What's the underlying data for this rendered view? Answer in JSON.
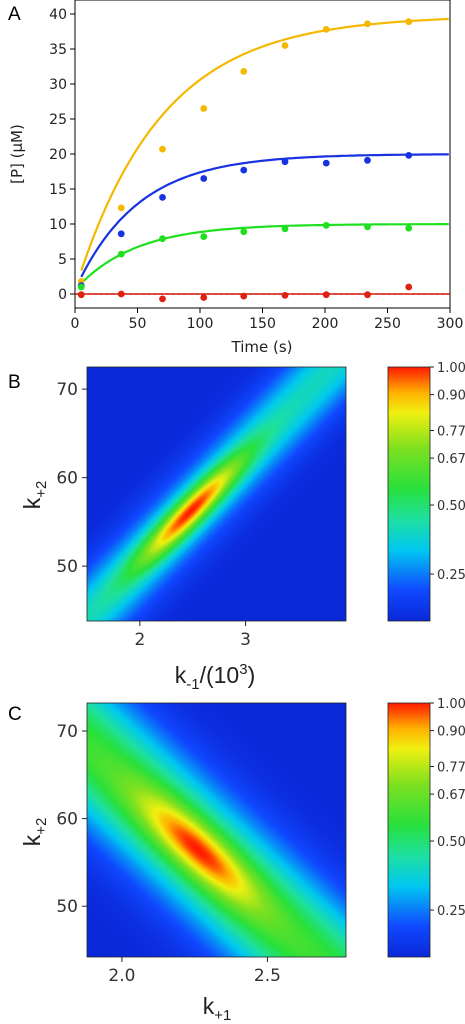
{
  "panel_labels": {
    "a": "A",
    "b": "B",
    "c": "C"
  },
  "colors": {
    "series_40": "#f5b800",
    "series_20": "#1732e0",
    "series_10": "#1fe01f",
    "series_0": "#e02010",
    "baseline": "#000000"
  },
  "colorbar_ticks": [
    "1.00",
    "0.90",
    "0.77",
    "0.67",
    "0.50",
    "0.25"
  ],
  "colorbar_values": [
    1.0,
    0.9,
    0.77,
    0.67,
    0.5,
    0.25
  ],
  "chart_data": [
    {
      "type": "scatter",
      "xlabel": "Time (s)",
      "ylabel": "[P] (μM)",
      "xlim": [
        0,
        300
      ],
      "ylim": [
        -2,
        42
      ],
      "xticks": [
        "0",
        "50",
        "100",
        "150",
        "200",
        "250",
        "300"
      ],
      "yticks": [
        "0",
        "5",
        "10",
        "15",
        "20",
        "25",
        "30",
        "35",
        "40"
      ],
      "grid": false,
      "series": [
        {
          "color_key": "series_40",
          "plateau": 39.8,
          "k": 0.0145,
          "x": [
            5,
            37,
            70,
            103,
            135,
            168,
            201,
            234,
            267
          ],
          "y": [
            1.8,
            12.3,
            20.7,
            26.5,
            31.8,
            35.5,
            37.8,
            38.6,
            38.9
          ]
        },
        {
          "color_key": "series_20",
          "plateau": 20.0,
          "k": 0.02,
          "x": [
            5,
            37,
            70,
            103,
            135,
            168,
            201,
            234,
            267
          ],
          "y": [
            1.2,
            8.6,
            13.8,
            16.5,
            17.7,
            18.9,
            18.7,
            19.1,
            19.8
          ]
        },
        {
          "color_key": "series_10",
          "plateau": 10.0,
          "k": 0.021,
          "x": [
            5,
            37,
            70,
            103,
            135,
            168,
            201,
            234,
            267
          ],
          "y": [
            1.0,
            5.7,
            7.9,
            8.2,
            8.9,
            9.3,
            9.8,
            9.6,
            9.4
          ]
        },
        {
          "color_key": "series_0",
          "plateau": 0.0,
          "k": 0.02,
          "x": [
            5,
            37,
            70,
            103,
            135,
            168,
            201,
            234,
            267
          ],
          "y": [
            -0.1,
            0.0,
            -0.7,
            -0.5,
            -0.3,
            -0.2,
            -0.1,
            -0.1,
            1.0
          ]
        }
      ]
    },
    {
      "type": "heatmap",
      "xlabel": "k-1/(10³)",
      "xlabel_main": "k",
      "xlabel_sub": "-1",
      "xlabel_tail": "/(10",
      "xlabel_sup": "3",
      "xlabel_close": ")",
      "ylabel_main": "k",
      "ylabel_sub": "+2",
      "xlim": [
        1.5,
        3.95
      ],
      "ylim": [
        43.8,
        72.5
      ],
      "xticks": [
        2,
        3
      ],
      "xtick_labels": [
        "2",
        "3"
      ],
      "yticks": [
        50,
        60,
        70
      ],
      "ytick_labels": [
        "50",
        "60",
        "70"
      ],
      "ridge": {
        "x0": 1.8,
        "y0": 48,
        "x1": 3.15,
        "y1": 64.5
      },
      "correlation": "positive"
    },
    {
      "type": "heatmap",
      "xlabel": "k+1",
      "xlabel_main": "k",
      "xlabel_sub": "+1",
      "ylabel_main": "k",
      "ylabel_sub": "+2",
      "xlim": [
        1.88,
        2.77
      ],
      "ylim": [
        44.2,
        73.2
      ],
      "xticks": [
        2.0,
        2.5
      ],
      "xtick_labels": [
        "2.0",
        "2.5"
      ],
      "yticks": [
        50,
        60,
        70
      ],
      "ytick_labels": [
        "50",
        "60",
        "70"
      ],
      "ridge": {
        "x0": 2.0,
        "y0": 64.5,
        "x1": 2.52,
        "y1": 48.5
      },
      "correlation": "negative"
    }
  ]
}
